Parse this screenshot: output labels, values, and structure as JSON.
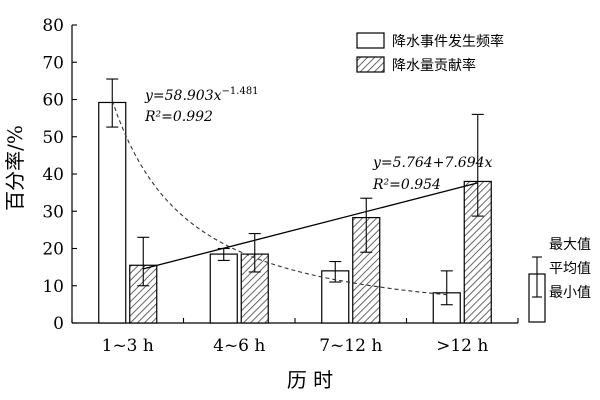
{
  "chart_data": {
    "type": "bar",
    "xlabel": "历 时",
    "ylabel": "百分率/%",
    "ylim": [
      0,
      80
    ],
    "yticks": [
      0,
      10,
      20,
      30,
      40,
      50,
      60,
      70,
      80
    ],
    "categories": [
      "1~3 h",
      "4~6 h",
      "7~12 h",
      ">12 h"
    ],
    "legend_position": "top-right",
    "series": [
      {
        "name": "降水事件发生频率",
        "style": "white",
        "values": [
          59.2,
          18.5,
          14.0,
          8.1
        ],
        "min": [
          52.6,
          16.8,
          11.0,
          4.9
        ],
        "max": [
          65.5,
          20.0,
          16.5,
          14.0
        ]
      },
      {
        "name": "降水量贡献率",
        "style": "hatched",
        "values": [
          15.5,
          18.5,
          28.3,
          38.0
        ],
        "min": [
          10.0,
          13.7,
          19.0,
          28.7
        ],
        "max": [
          23.0,
          24.0,
          33.5,
          56.0
        ]
      }
    ],
    "fits": [
      {
        "series": "降水事件发生频率",
        "kind": "power",
        "a": 58.903,
        "b": -1.481,
        "equation": "y=58.903x",
        "exponent": "−1.481",
        "r2": "R²=0.992",
        "line": "dashed"
      },
      {
        "series": "降水量贡献率",
        "kind": "linear",
        "a": 5.764,
        "b": 7.694,
        "equation": "y=5.764+7.694x",
        "r2": "R²=0.954",
        "line": "solid"
      }
    ],
    "errorbar_key": {
      "max_label": "最大值",
      "mean_label": "平均值",
      "min_label": "最小值"
    }
  }
}
